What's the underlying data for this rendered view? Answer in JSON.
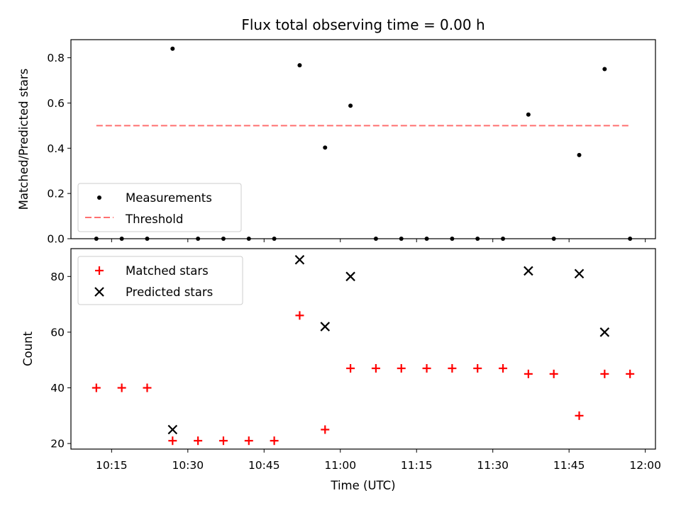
{
  "title": "Flux total observing time = 0.00 h",
  "chart_data": [
    {
      "type": "scatter",
      "ylabel": "Matched/Predicted stars",
      "ylim": [
        0,
        0.88
      ],
      "yticks": [
        0.0,
        0.2,
        0.4,
        0.6,
        0.8
      ],
      "ytick_labels": [
        "0.0",
        "0.2",
        "0.4",
        "0.6",
        "0.8"
      ],
      "xlim": [
        "10:07",
        "12:02"
      ],
      "legend_position": "lower-left",
      "series": [
        {
          "name": "Measurements",
          "kind": "scatter",
          "marker": "dot",
          "color": "#000000",
          "x": [
            "10:12",
            "10:17",
            "10:22",
            "10:27",
            "10:32",
            "10:37",
            "10:42",
            "10:47",
            "10:52",
            "10:57",
            "11:02",
            "11:07",
            "11:12",
            "11:17",
            "11:22",
            "11:27",
            "11:32",
            "11:37",
            "11:42",
            "11:47",
            "11:52",
            "11:57"
          ],
          "y": [
            0,
            0,
            0,
            0.84,
            0,
            0,
            0,
            0,
            0.767,
            0.403,
            0.588,
            0,
            0,
            0,
            0,
            0,
            0,
            0.549,
            0,
            0.37,
            0.75,
            0
          ]
        },
        {
          "name": "Threshold",
          "kind": "dashed-line",
          "color": "#ff7070",
          "x": [
            "10:12",
            "11:57"
          ],
          "y": [
            0.5,
            0.5
          ]
        }
      ]
    },
    {
      "type": "scatter",
      "xlabel": "Time (UTC)",
      "ylabel": "Count",
      "ylim": [
        18,
        90
      ],
      "yticks": [
        20,
        40,
        60,
        80
      ],
      "ytick_labels": [
        "20",
        "40",
        "60",
        "80"
      ],
      "xlim": [
        "10:07",
        "12:02"
      ],
      "xticks": [
        "10:15",
        "10:30",
        "10:45",
        "11:00",
        "11:15",
        "11:30",
        "11:45",
        "12:00"
      ],
      "legend_position": "upper-left",
      "series": [
        {
          "name": "Matched stars",
          "kind": "scatter",
          "marker": "plus",
          "color": "#ff0000",
          "x": [
            "10:12",
            "10:17",
            "10:22",
            "10:27",
            "10:32",
            "10:37",
            "10:42",
            "10:47",
            "10:52",
            "10:57",
            "11:02",
            "11:07",
            "11:12",
            "11:17",
            "11:22",
            "11:27",
            "11:32",
            "11:37",
            "11:42",
            "11:47",
            "11:52",
            "11:57"
          ],
          "y": [
            40,
            40,
            40,
            21,
            21,
            21,
            21,
            21,
            66,
            25,
            47,
            47,
            47,
            47,
            47,
            47,
            47,
            45,
            45,
            30,
            45,
            45
          ]
        },
        {
          "name": "Predicted stars",
          "kind": "scatter",
          "marker": "x",
          "color": "#000000",
          "x": [
            "10:27",
            "10:52",
            "10:57",
            "11:02",
            "11:37",
            "11:47",
            "11:52"
          ],
          "y": [
            25,
            86,
            62,
            80,
            82,
            81,
            60
          ]
        }
      ]
    }
  ]
}
